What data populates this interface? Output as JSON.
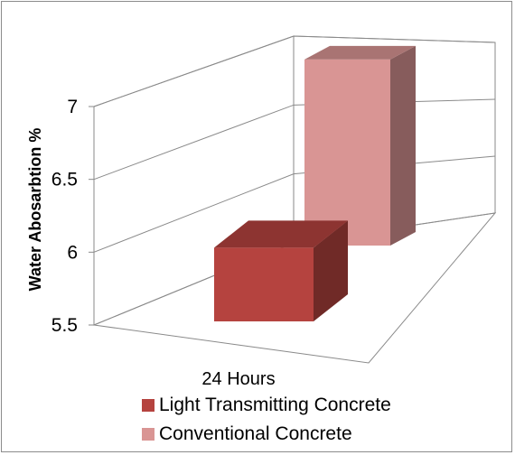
{
  "chart_data": {
    "type": "bar",
    "view": "3d-column",
    "title": "",
    "xlabel": "",
    "ylabel": "Water Abosarbtion %",
    "categories": [
      "24 Hours"
    ],
    "series": [
      {
        "name": "Light Transmitting Concrete",
        "values": [
          6.05
        ],
        "color": "#b5433f"
      },
      {
        "name": "Conventional Concrete",
        "values": [
          7.0
        ],
        "color": "#d99594"
      }
    ],
    "ylim": [
      5.5,
      7.0
    ],
    "yticks": [
      "5.5",
      "6",
      "6.5",
      "7"
    ],
    "grid": true,
    "legend": "bottom"
  }
}
